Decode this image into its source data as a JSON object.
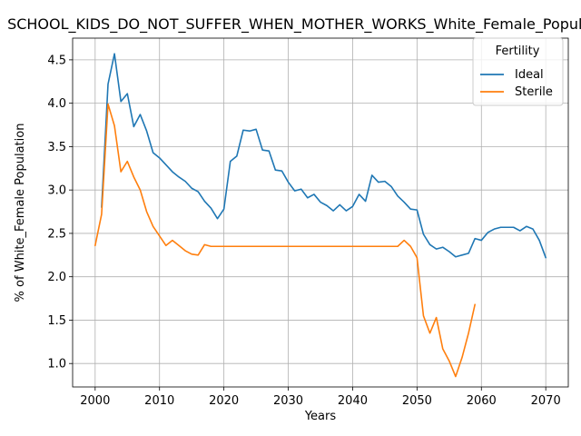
{
  "chart_data": {
    "type": "line",
    "title": "SCHOOL_KIDS_DO_NOT_SUFFER_WHEN_MOTHER_WORKS_White_Female_Population",
    "xlabel": "Years",
    "ylabel": "% of White_Female Population",
    "xlim": [
      1996.5,
      2073.5
    ],
    "ylim": [
      0.73,
      4.75
    ],
    "xticks": [
      2000,
      2010,
      2020,
      2030,
      2040,
      2050,
      2060,
      2070
    ],
    "yticks": [
      1.0,
      1.5,
      2.0,
      2.5,
      3.0,
      3.5,
      4.0,
      4.5
    ],
    "ytick_labels": [
      "1.0",
      "1.5",
      "2.0",
      "2.5",
      "3.0",
      "3.5",
      "4.0",
      "4.5"
    ],
    "grid": true,
    "legend": {
      "title": "Fertility",
      "placement": "top-right"
    },
    "series": [
      {
        "name": "Ideal",
        "color": "#1f77b4",
        "x": [
          2001,
          2002,
          2003,
          2004,
          2005,
          2006,
          2007,
          2008,
          2009,
          2010,
          2011,
          2012,
          2013,
          2014,
          2015,
          2016,
          2017,
          2018,
          2019,
          2020,
          2021,
          2022,
          2023,
          2024,
          2025,
          2026,
          2027,
          2028,
          2029,
          2030,
          2031,
          2032,
          2033,
          2034,
          2035,
          2036,
          2037,
          2038,
          2039,
          2040,
          2041,
          2042,
          2043,
          2044,
          2045,
          2046,
          2047,
          2048,
          2049,
          2050,
          2051,
          2052,
          2053,
          2054,
          2055,
          2056,
          2057,
          2058,
          2059,
          2060,
          2061,
          2062,
          2063,
          2064,
          2065,
          2066,
          2067,
          2068,
          2069,
          2070
        ],
        "values": [
          2.8,
          4.22,
          4.57,
          4.02,
          4.11,
          3.73,
          3.87,
          3.68,
          3.43,
          3.37,
          3.29,
          3.21,
          3.15,
          3.1,
          3.02,
          2.98,
          2.87,
          2.79,
          2.67,
          2.78,
          3.33,
          3.39,
          3.69,
          3.68,
          3.7,
          3.46,
          3.45,
          3.23,
          3.22,
          3.09,
          2.99,
          3.01,
          2.91,
          2.95,
          2.86,
          2.82,
          2.76,
          2.83,
          2.76,
          2.81,
          2.95,
          2.87,
          3.17,
          3.09,
          3.1,
          3.04,
          2.93,
          2.86,
          2.78,
          2.77,
          2.49,
          2.37,
          2.32,
          2.34,
          2.29,
          2.23,
          2.25,
          2.27,
          2.44,
          2.42,
          2.51,
          2.55,
          2.57,
          2.57,
          2.57,
          2.53,
          2.58,
          2.55,
          2.42,
          2.22
        ]
      },
      {
        "name": "Sterile",
        "color": "#ff7f0e",
        "x": [
          2000,
          2001,
          2002,
          2003,
          2004,
          2005,
          2006,
          2007,
          2008,
          2009,
          2010,
          2011,
          2012,
          2013,
          2014,
          2015,
          2016,
          2017,
          2018,
          2019,
          2020,
          2021,
          2022,
          2023,
          2024,
          2025,
          2026,
          2027,
          2028,
          2029,
          2030,
          2031,
          2032,
          2033,
          2034,
          2035,
          2036,
          2037,
          2038,
          2039,
          2040,
          2041,
          2042,
          2043,
          2044,
          2045,
          2046,
          2047,
          2048,
          2049,
          2050,
          2051,
          2052,
          2053,
          2054,
          2055,
          2056,
          2057,
          2058,
          2059
        ],
        "values": [
          2.36,
          2.72,
          3.99,
          3.74,
          3.21,
          3.33,
          3.15,
          3.0,
          2.75,
          2.58,
          2.47,
          2.36,
          2.42,
          2.36,
          2.3,
          2.26,
          2.25,
          2.37,
          2.35,
          2.35,
          2.35,
          2.35,
          2.35,
          2.35,
          2.35,
          2.35,
          2.35,
          2.35,
          2.35,
          2.35,
          2.35,
          2.35,
          2.35,
          2.35,
          2.35,
          2.35,
          2.35,
          2.35,
          2.35,
          2.35,
          2.35,
          2.35,
          2.35,
          2.35,
          2.35,
          2.35,
          2.35,
          2.35,
          2.42,
          2.35,
          2.22,
          1.55,
          1.35,
          1.53,
          1.17,
          1.03,
          0.85,
          1.07,
          1.35,
          1.68
        ]
      }
    ]
  }
}
